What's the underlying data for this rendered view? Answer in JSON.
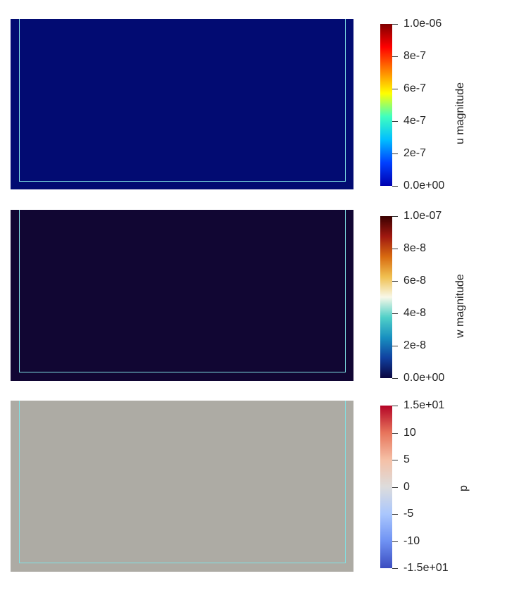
{
  "fields": [
    {
      "name": "u magnitude",
      "fill": "#020b72",
      "colorbar": [
        "#800000",
        "#ff0000",
        "#ff8000",
        "#ffff00",
        "#40ffbf",
        "#00bfff",
        "#0040ff",
        "#0000b0"
      ],
      "ticks": [
        "1.0e-06",
        "8e-7",
        "6e-7",
        "4e-7",
        "2e-7",
        "0.0e+00"
      ]
    },
    {
      "name": "w magnitude",
      "fill": "#110633",
      "colorbar": [
        "#3a0000",
        "#a01810",
        "#d86a10",
        "#f0c050",
        "#f8f8e8",
        "#50d0c8",
        "#1890c0",
        "#1040a0",
        "#0a0640"
      ],
      "ticks": [
        "1.0e-07",
        "8e-8",
        "6e-8",
        "4e-8",
        "2e-8",
        "0.0e+00"
      ]
    },
    {
      "name": "p",
      "fill": "#adaba4",
      "colorbar": [
        "#b40426",
        "#e7745b",
        "#f5c0a6",
        "#dddcdc",
        "#aac7fd",
        "#6f92f3",
        "#3b4cc0"
      ],
      "ticks": [
        "1.5e+01",
        "10",
        "5",
        "0",
        "-5",
        "-10",
        "-1.5e+01"
      ]
    }
  ]
}
